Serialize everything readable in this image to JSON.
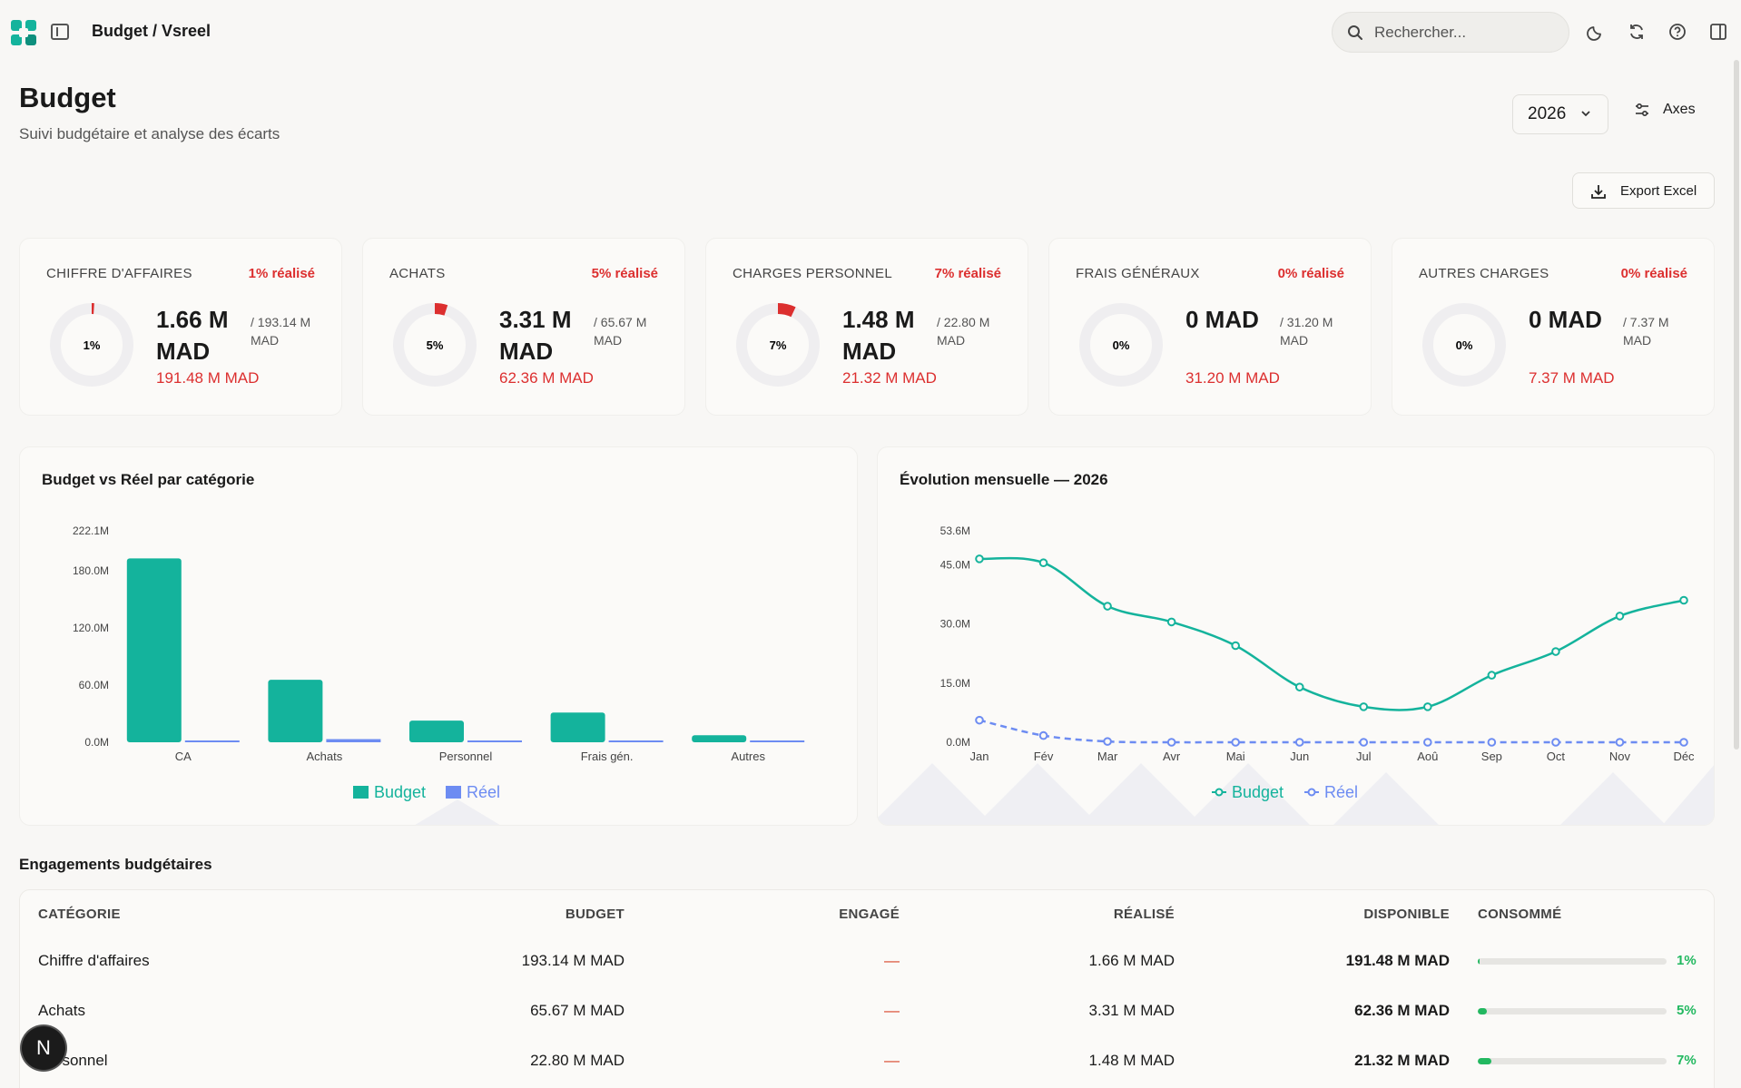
{
  "header": {
    "breadcrumb": "Budget / Vsreel",
    "search_placeholder": "Rechercher...",
    "icons": [
      "logo-icon",
      "sidebar-toggle-icon",
      "search-icon",
      "moon-icon",
      "refresh-icon",
      "help-icon",
      "panel-icon"
    ]
  },
  "page": {
    "title": "Budget",
    "subtitle": "Suivi budgétaire et analyse des écarts",
    "year": "2026",
    "axes_label": "Axes",
    "export_label": "Export Excel"
  },
  "kpis": [
    {
      "label": "CHIFFRE D'AFFAIRES",
      "pct_label": "1% réalisé",
      "donut_label": "1%",
      "pct": 1,
      "value": "1.66 M MAD",
      "budget": "/ 193.14 M MAD",
      "remaining": "191.48 M MAD"
    },
    {
      "label": "ACHATS",
      "pct_label": "5% réalisé",
      "donut_label": "5%",
      "pct": 5,
      "value": "3.31 M MAD",
      "budget": "/ 65.67 M MAD",
      "remaining": "62.36 M MAD"
    },
    {
      "label": "CHARGES PERSONNEL",
      "pct_label": "7% réalisé",
      "donut_label": "7%",
      "pct": 7,
      "value": "1.48 M MAD",
      "budget": "/ 22.80 M MAD",
      "remaining": "21.32 M MAD"
    },
    {
      "label": "FRAIS GÉNÉRAUX",
      "pct_label": "0% réalisé",
      "donut_label": "0%",
      "pct": 0,
      "value": "0 MAD",
      "budget": "/ 31.20 M MAD",
      "remaining": "31.20 M MAD"
    },
    {
      "label": "AUTRES CHARGES",
      "pct_label": "0% réalisé",
      "donut_label": "0%",
      "pct": 0,
      "value": "0 MAD",
      "budget": "/ 7.37 M MAD",
      "remaining": "7.37 M MAD"
    }
  ],
  "colors": {
    "budget": "#14b39c",
    "reel": "#6d8cf2",
    "alert": "#dc2f2f",
    "ok": "#22b860"
  },
  "chart_data": [
    {
      "type": "bar",
      "title": "Budget vs Réel par catégorie",
      "categories": [
        "CA",
        "Achats",
        "Personnel",
        "Frais gén.",
        "Autres"
      ],
      "series": [
        {
          "name": "Budget",
          "values": [
            193.14,
            65.67,
            22.8,
            31.2,
            7.37
          ]
        },
        {
          "name": "Réel",
          "values": [
            1.66,
            3.31,
            1.48,
            0,
            0
          ]
        }
      ],
      "yticks": [
        "0.0M",
        "60.0M",
        "120.0M",
        "180.0M",
        "222.1M"
      ],
      "ylim": [
        0,
        222.1
      ],
      "legend": "bottom"
    },
    {
      "type": "line",
      "title": "Évolution mensuelle — 2026",
      "categories": [
        "Jan",
        "Fév",
        "Mar",
        "Avr",
        "Mai",
        "Jun",
        "Jul",
        "Aoû",
        "Sep",
        "Oct",
        "Nov",
        "Déc"
      ],
      "series": [
        {
          "name": "Budget",
          "values": [
            46.5,
            45.5,
            34.5,
            30.5,
            24.5,
            14,
            9,
            9,
            17,
            23,
            32,
            36
          ]
        },
        {
          "name": "Réel",
          "values": [
            5.6,
            1.7,
            0.2,
            0,
            0,
            0,
            0,
            0,
            0,
            0,
            0,
            0
          ]
        }
      ],
      "yticks": [
        "0.0M",
        "15.0M",
        "30.0M",
        "45.0M",
        "53.6M"
      ],
      "ylim": [
        0,
        53.6
      ],
      "legend": "bottom"
    }
  ],
  "engagements": {
    "title": "Engagements budgétaires",
    "headers": [
      "CATÉGORIE",
      "BUDGET",
      "ENGAGÉ",
      "RÉALISÉ",
      "DISPONIBLE",
      "CONSOMMÉ"
    ],
    "rows": [
      {
        "categorie": "Chiffre d'affaires",
        "budget": "193.14 M MAD",
        "engage": "—",
        "realise": "1.66 M MAD",
        "disponible": "191.48 M MAD",
        "consomme": "1%",
        "pct": 1
      },
      {
        "categorie": "Achats",
        "budget": "65.67 M MAD",
        "engage": "—",
        "realise": "3.31 M MAD",
        "disponible": "62.36 M MAD",
        "consomme": "5%",
        "pct": 5
      },
      {
        "categorie": "Personnel",
        "budget": "22.80 M MAD",
        "engage": "—",
        "realise": "1.48 M MAD",
        "disponible": "21.32 M MAD",
        "consomme": "7%",
        "pct": 7
      }
    ]
  },
  "badge": "N"
}
